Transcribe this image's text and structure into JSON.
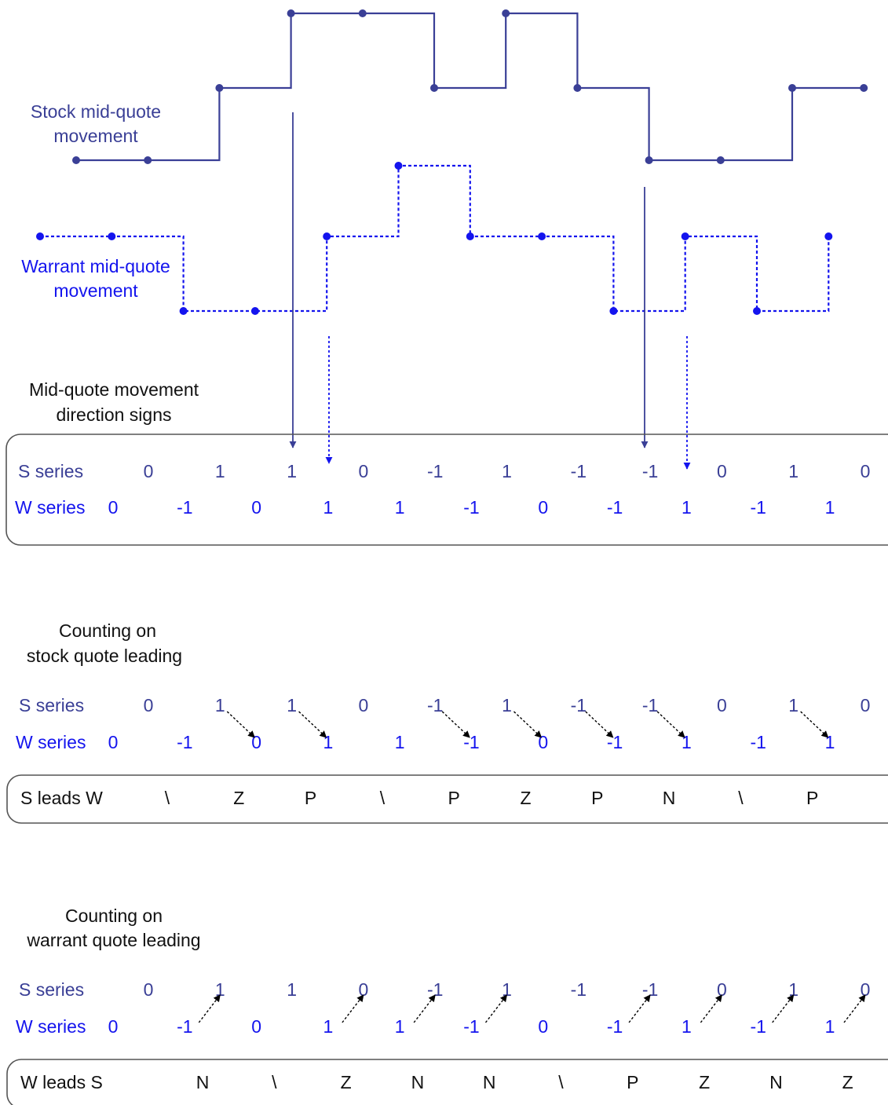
{
  "labels": {
    "stock_line1": "Stock mid-quote",
    "stock_line2": "movement",
    "warrant_line1": "Warrant mid-quote",
    "warrant_line2": "movement",
    "signs_line1": "Mid-quote movement",
    "signs_line2": "direction signs",
    "stock_lead_line1": "Counting on",
    "stock_lead_line2": "stock quote leading",
    "warrant_lead_line1": "Counting on",
    "warrant_lead_line2": "warrant quote leading",
    "s_series": "S series",
    "w_series": "W series",
    "s_leads_w": "S leads W",
    "w_leads_s": "W leads S"
  },
  "colors": {
    "stock": "#3a3f96",
    "warrant": "#1414ee",
    "text": "#111111"
  },
  "s_series": [
    "0",
    "1",
    "1",
    "0",
    "-1",
    "1",
    "-1",
    "-1",
    "0",
    "1",
    "0"
  ],
  "w_series": [
    "0",
    "-1",
    "0",
    "1",
    "1",
    "-1",
    "0",
    "-1",
    "1",
    "-1",
    "1"
  ],
  "s_leads_w": [
    "\\",
    "Z",
    "P",
    "\\",
    "P",
    "Z",
    "P",
    "N",
    "\\",
    "P"
  ],
  "w_leads_s": [
    "N",
    "\\",
    "Z",
    "N",
    "N",
    "\\",
    "P",
    "Z",
    "N",
    "Z"
  ],
  "stock_quote_levels": [
    1,
    1,
    2,
    3,
    3,
    2,
    3,
    2,
    1,
    1,
    2,
    2
  ],
  "warrant_quote_levels": [
    2,
    2,
    1,
    1,
    2,
    3,
    2,
    2,
    1,
    2,
    1,
    2
  ]
}
